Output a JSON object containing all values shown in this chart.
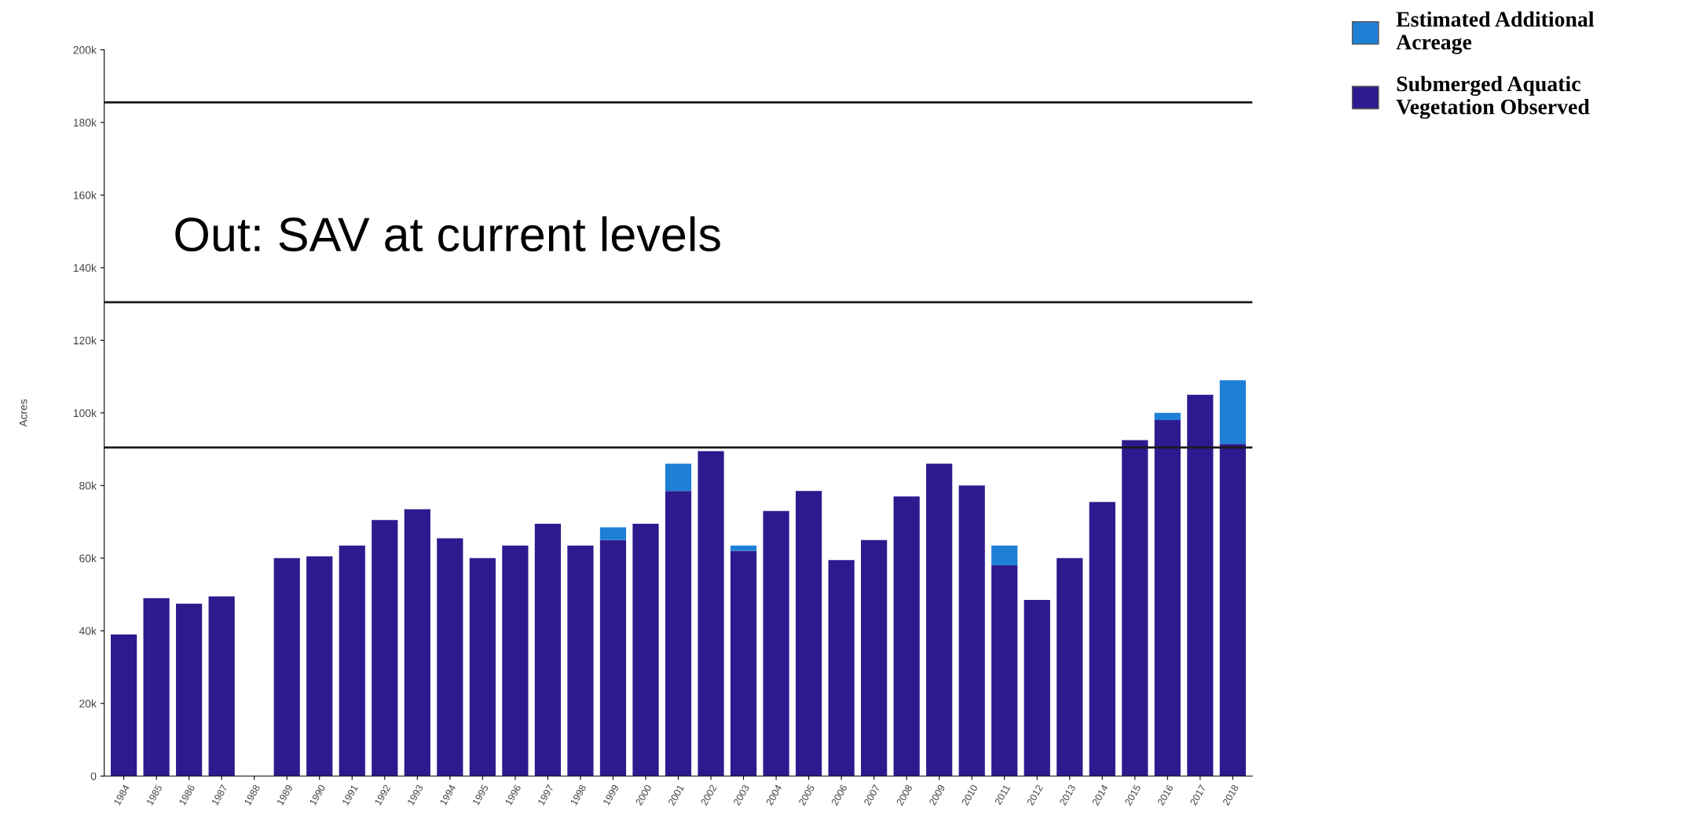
{
  "chart_data": {
    "type": "bar",
    "stacked": true,
    "ylabel": "Acres",
    "categories": [
      "1984",
      "1985",
      "1986",
      "1987",
      "1988",
      "1989",
      "1990",
      "1991",
      "1992",
      "1993",
      "1994",
      "1995",
      "1996",
      "1997",
      "1998",
      "1999",
      "2000",
      "2001",
      "2002",
      "2003",
      "2004",
      "2005",
      "2006",
      "2007",
      "2008",
      "2009",
      "2010",
      "2011",
      "2012",
      "2013",
      "2014",
      "2015",
      "2016",
      "2017",
      "2018"
    ],
    "series": [
      {
        "name": "Submerged Aquatic Vegetation Observed",
        "color": "#2e1a8e",
        "values": [
          39000,
          49000,
          47500,
          49500,
          null,
          60000,
          60500,
          63500,
          70500,
          73500,
          65500,
          60000,
          63500,
          69500,
          63500,
          65000,
          69500,
          78500,
          89500,
          62000,
          73000,
          78500,
          59500,
          65000,
          77000,
          86000,
          80000,
          58000,
          48500,
          60000,
          75500,
          92500,
          98000,
          105000,
          91500
        ]
      },
      {
        "name": "Estimated Additional Acreage",
        "color": "#1e7fd6",
        "values": [
          null,
          null,
          null,
          null,
          null,
          null,
          null,
          null,
          null,
          null,
          null,
          null,
          null,
          null,
          null,
          3500,
          null,
          7500,
          null,
          1500,
          null,
          null,
          null,
          null,
          null,
          null,
          null,
          5500,
          null,
          null,
          null,
          null,
          2000,
          null,
          17500
        ]
      }
    ],
    "ylim": [
      0,
      200000
    ],
    "yticks": [
      0,
      {
        "value": 20000,
        "label": "20k"
      },
      {
        "value": 40000,
        "label": "40k"
      },
      {
        "value": 60000,
        "label": "60k"
      },
      {
        "value": 80000,
        "label": "80k"
      },
      {
        "value": 100000,
        "label": "100k"
      },
      {
        "value": 120000,
        "label": "120k"
      },
      {
        "value": 140000,
        "label": "140k"
      },
      {
        "value": 160000,
        "label": "160k"
      },
      {
        "value": 180000,
        "label": "180k"
      },
      {
        "value": 200000,
        "label": "200k"
      }
    ],
    "ref_lines": [
      {
        "axis": "y",
        "value": 185500,
        "color": "#1a1a1a"
      },
      {
        "axis": "y",
        "value": 130500,
        "color": "#1a1a1a"
      },
      {
        "axis": "y",
        "value": 90500,
        "color": "#1a1a1a"
      }
    ],
    "annotations": [
      "Out: SAV at current levels"
    ],
    "legend": "top right",
    "grid": false
  }
}
